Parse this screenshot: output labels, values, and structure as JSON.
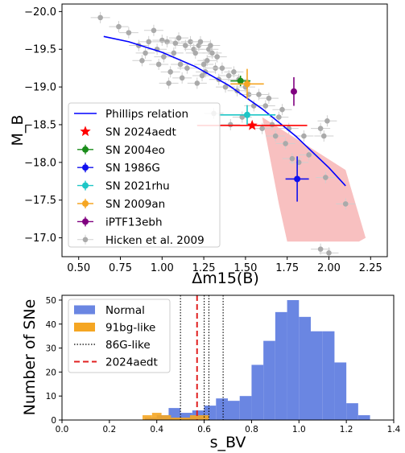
{
  "chart_data": [
    {
      "type": "scatter",
      "xlabel": "Δm15(B)",
      "ylabel": "M_B",
      "xlim": [
        0.4,
        2.35
      ],
      "ylim": [
        -16.75,
        -20.1
      ],
      "y_inverted": true,
      "x_ticks": [
        "0.50",
        "0.75",
        "1.00",
        "1.25",
        "1.50",
        "1.75",
        "2.00",
        "2.25"
      ],
      "y_ticks": [
        "−20.0",
        "−19.5",
        "−19.0",
        "−18.5",
        "−18.0",
        "−17.5",
        "−17.0"
      ],
      "legend_position": "lower-left",
      "phillips_relation": {
        "name": "Phillips relation",
        "color": "#0000ff",
        "x": [
          0.65,
          0.8,
          1.0,
          1.2,
          1.4,
          1.6,
          1.8,
          2.0,
          2.1
        ],
        "y": [
          -19.67,
          -19.6,
          -19.46,
          -19.27,
          -19.02,
          -18.71,
          -18.35,
          -17.93,
          -17.69
        ]
      },
      "pink_region": {
        "color": "#f7b9b9",
        "x": [
          1.6,
          2.1,
          2.22,
          2.18,
          1.75,
          1.7,
          1.6
        ],
        "y": [
          -18.6,
          -17.9,
          -17.0,
          -16.95,
          -16.95,
          -17.45,
          -18.6
        ]
      },
      "objects": [
        {
          "name": "SN 2024aedt",
          "color": "#ff0000",
          "marker": "star",
          "x": 1.54,
          "y": -18.49,
          "xerr": 0.33,
          "yerr": 0.0
        },
        {
          "name": "SN 2004eo",
          "color": "#1a8c1a",
          "marker": "circle",
          "x": 1.47,
          "y": -19.08,
          "xerr": 0.06,
          "yerr": 0.07
        },
        {
          "name": "SN 1986G",
          "color": "#1010ee",
          "marker": "circle",
          "x": 1.81,
          "y": -17.78,
          "xerr": 0.07,
          "yerr": 0.3
        },
        {
          "name": "SN 2021rhu",
          "color": "#1ec6c6",
          "marker": "circle",
          "x": 1.51,
          "y": -18.63,
          "xerr": 0.17,
          "yerr": 0.13
        },
        {
          "name": "SN 2009an",
          "color": "#f5a623",
          "marker": "circle",
          "x": 1.51,
          "y": -19.04,
          "xerr": 0.1,
          "yerr": 0.2
        },
        {
          "name": "iPTF13ebh",
          "color": "#800080",
          "marker": "circle",
          "x": 1.79,
          "y": -18.94,
          "xerr": 0.0,
          "yerr": 0.19
        }
      ],
      "hicken": {
        "name": "Hicken et al. 2009",
        "color": "#aaaaaa",
        "points": [
          [
            0.63,
            -19.92
          ],
          [
            0.74,
            -19.8
          ],
          [
            0.8,
            -19.72
          ],
          [
            0.86,
            -19.55
          ],
          [
            0.88,
            -19.35
          ],
          [
            0.9,
            -19.45
          ],
          [
            0.92,
            -19.6
          ],
          [
            0.95,
            -19.75
          ],
          [
            0.97,
            -19.5
          ],
          [
            0.98,
            -19.3
          ],
          [
            1.0,
            -19.62
          ],
          [
            1.01,
            -19.4
          ],
          [
            1.03,
            -19.6
          ],
          [
            1.04,
            -19.05
          ],
          [
            1.05,
            -19.2
          ],
          [
            1.07,
            -19.45
          ],
          [
            1.08,
            -19.58
          ],
          [
            1.1,
            -19.65
          ],
          [
            1.11,
            -19.3
          ],
          [
            1.12,
            -19.12
          ],
          [
            1.14,
            -19.55
          ],
          [
            1.15,
            -19.25
          ],
          [
            1.17,
            -19.6
          ],
          [
            1.19,
            -19.5
          ],
          [
            1.2,
            -19.45
          ],
          [
            1.21,
            -19.05
          ],
          [
            1.22,
            -19.55
          ],
          [
            1.23,
            -19.6
          ],
          [
            1.24,
            -19.15
          ],
          [
            1.25,
            -19.3
          ],
          [
            1.26,
            -19.2
          ],
          [
            1.27,
            -19.35
          ],
          [
            1.28,
            -19.5
          ],
          [
            1.29,
            -19.55
          ],
          [
            1.3,
            -19.45
          ],
          [
            1.31,
            -18.65
          ],
          [
            1.32,
            -19.25
          ],
          [
            1.33,
            -19.4
          ],
          [
            1.34,
            -19.1
          ],
          [
            1.36,
            -19.25
          ],
          [
            1.38,
            -19.0
          ],
          [
            1.4,
            -19.15
          ],
          [
            1.41,
            -18.5
          ],
          [
            1.43,
            -19.2
          ],
          [
            1.45,
            -18.95
          ],
          [
            1.46,
            -19.1
          ],
          [
            1.48,
            -18.6
          ],
          [
            1.5,
            -19.0
          ],
          [
            1.52,
            -18.9
          ],
          [
            1.55,
            -18.75
          ],
          [
            1.58,
            -18.9
          ],
          [
            1.6,
            -18.45
          ],
          [
            1.62,
            -18.75
          ],
          [
            1.64,
            -18.85
          ],
          [
            1.66,
            -18.5
          ],
          [
            1.68,
            -18.35
          ],
          [
            1.7,
            -18.6
          ],
          [
            1.72,
            -18.7
          ],
          [
            1.74,
            -18.25
          ],
          [
            1.76,
            -18.45
          ],
          [
            1.78,
            -18.05
          ],
          [
            1.82,
            -18.0
          ],
          [
            1.85,
            -18.35
          ],
          [
            1.88,
            -18.1
          ],
          [
            1.95,
            -18.45
          ],
          [
            1.97,
            -18.35
          ],
          [
            1.98,
            -17.8
          ],
          [
            1.99,
            -18.55
          ],
          [
            1.95,
            -16.85
          ],
          [
            2.0,
            -16.8
          ],
          [
            2.1,
            -17.45
          ]
        ]
      }
    },
    {
      "type": "bar",
      "xlabel": "s_BV",
      "ylabel": "Number of SNe",
      "xlim": [
        0.0,
        1.4
      ],
      "ylim": [
        0,
        52
      ],
      "x_ticks": [
        "0.0",
        "0.2",
        "0.4",
        "0.6",
        "0.8",
        "1.0",
        "1.2",
        "1.4"
      ],
      "y_ticks": [
        "0",
        "10",
        "20",
        "30",
        "40",
        "50"
      ],
      "legend_position": "top-left",
      "bin_width": 0.05,
      "series": [
        {
          "name": "Normal",
          "color": "#6a86e2",
          "bins_start": [
            0.35,
            0.4,
            0.45,
            0.5,
            0.55,
            0.6,
            0.65,
            0.7,
            0.75,
            0.8,
            0.85,
            0.9,
            0.95,
            1.0,
            1.05,
            1.1,
            1.15,
            1.2,
            1.25
          ],
          "counts": [
            1,
            2,
            5,
            3,
            4,
            6,
            9,
            8,
            10,
            23,
            33,
            45,
            50,
            43,
            37,
            37,
            24,
            7,
            2
          ]
        },
        {
          "name": "91bg-like",
          "color": "#f5a623",
          "bins_start": [
            0.34,
            0.38,
            0.42,
            0.46,
            0.5,
            0.54,
            0.58
          ],
          "counts": [
            2,
            3,
            2,
            1,
            1,
            2,
            2
          ]
        }
      ],
      "vlines": [
        {
          "name": "86G-like",
          "style": "dotted",
          "color": "#000000",
          "x": [
            0.5,
            0.6,
            0.62,
            0.68
          ]
        },
        {
          "name": "2024aedt",
          "style": "dashed",
          "color": "#e02020",
          "x": [
            0.57
          ]
        }
      ]
    }
  ]
}
